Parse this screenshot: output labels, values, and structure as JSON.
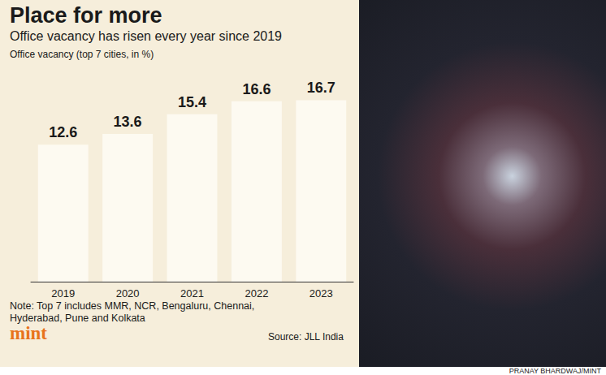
{
  "chart_data": {
    "type": "bar",
    "title": "Place for more",
    "subtitle": "Office vacancy has risen every year since 2019",
    "y_label": "Office vacancy (top 7 cities, in %)",
    "note": "Note: Top 7 includes MMR, NCR, Bengaluru, Chennai, Hyderabad, Pune and Kolkata",
    "logo": "mint",
    "source": "Source: JLL India",
    "credit": "PRANAY BHARDWAJ/MINT",
    "categories": [
      "2019",
      "2020",
      "2021",
      "2022",
      "2023"
    ],
    "values": [
      12.6,
      13.6,
      15.4,
      16.6,
      16.7
    ],
    "color": "#fdfaf1",
    "ylim": [
      0,
      18
    ],
    "grid": false,
    "data_labels": true,
    "tick_labels": "x"
  }
}
